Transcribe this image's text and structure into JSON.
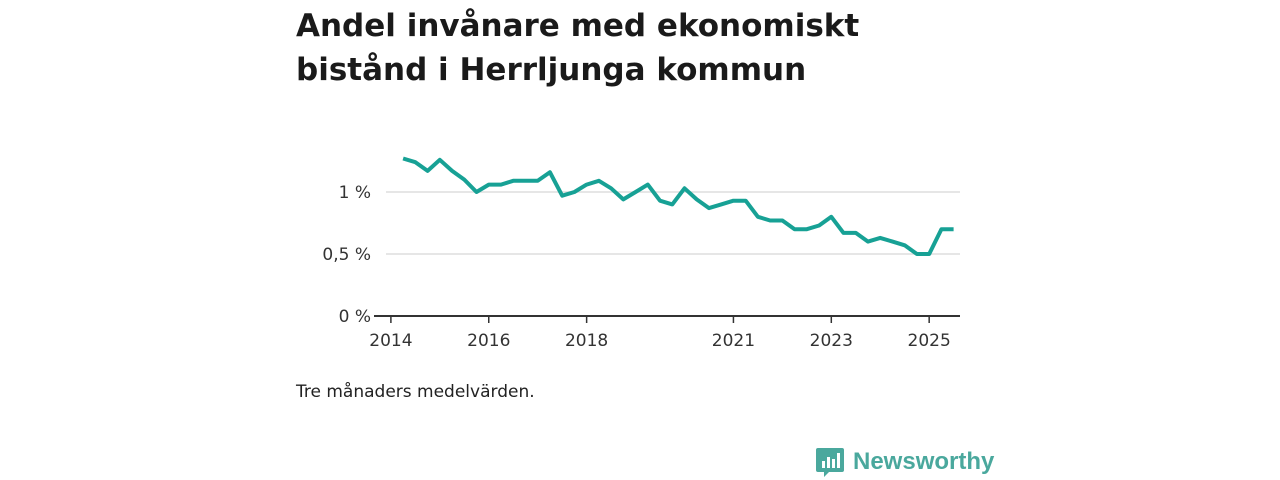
{
  "title": "Andel invånare med ekonomiskt bistånd i Herrljunga kommun",
  "note": "Tre månaders medelvärden.",
  "brand": {
    "name": "Newsworthy",
    "icon": "newsworthy-logo-icon"
  },
  "colors": {
    "line": "#17a195",
    "grid": "#dddddd",
    "axis": "#333333",
    "brand": "#4aa89d"
  },
  "chart_data": {
    "type": "line",
    "title": "Andel invånare med ekonomiskt bistånd i Herrljunga kommun",
    "xlabel": "",
    "ylabel": "",
    "xlim": [
      2013.9,
      2025.63
    ],
    "ylim": [
      0,
      1.5
    ],
    "grid": true,
    "x_ticks": [
      {
        "value": 2014,
        "label": "2014"
      },
      {
        "value": 2016,
        "label": "2016"
      },
      {
        "value": 2018,
        "label": "2018"
      },
      {
        "value": 2021,
        "label": "2021"
      },
      {
        "value": 2023,
        "label": "2023"
      },
      {
        "value": 2025,
        "label": "2025"
      }
    ],
    "y_ticks": [
      {
        "value": 0,
        "label": "0 %"
      },
      {
        "value": 0.5,
        "label": "0,5 %"
      },
      {
        "value": 1,
        "label": "1 %"
      }
    ],
    "series": [
      {
        "name": "Andel invånare med ekonomiskt bistånd",
        "x": [
          2014.25,
          2014.5,
          2014.75,
          2015.0,
          2015.25,
          2015.5,
          2015.75,
          2016.0,
          2016.25,
          2016.5,
          2016.75,
          2017.0,
          2017.25,
          2017.5,
          2017.75,
          2018.0,
          2018.25,
          2018.5,
          2018.75,
          2019.0,
          2019.25,
          2019.5,
          2019.75,
          2020.0,
          2020.25,
          2020.5,
          2020.75,
          2021.0,
          2021.25,
          2021.5,
          2021.75,
          2022.0,
          2022.25,
          2022.5,
          2022.75,
          2023.0,
          2023.25,
          2023.5,
          2023.75,
          2024.0,
          2024.25,
          2024.5,
          2024.75,
          2025.0,
          2025.25,
          2025.5
        ],
        "values": [
          1.27,
          1.24,
          1.17,
          1.26,
          1.17,
          1.1,
          1.0,
          1.06,
          1.06,
          1.09,
          1.09,
          1.09,
          1.16,
          0.97,
          1.0,
          1.06,
          1.09,
          1.03,
          0.94,
          1.0,
          1.06,
          0.93,
          0.9,
          1.03,
          0.94,
          0.87,
          0.9,
          0.93,
          0.93,
          0.8,
          0.77,
          0.77,
          0.7,
          0.7,
          0.73,
          0.8,
          0.67,
          0.67,
          0.6,
          0.63,
          0.6,
          0.57,
          0.5,
          0.5,
          0.7,
          0.7
        ]
      }
    ]
  }
}
